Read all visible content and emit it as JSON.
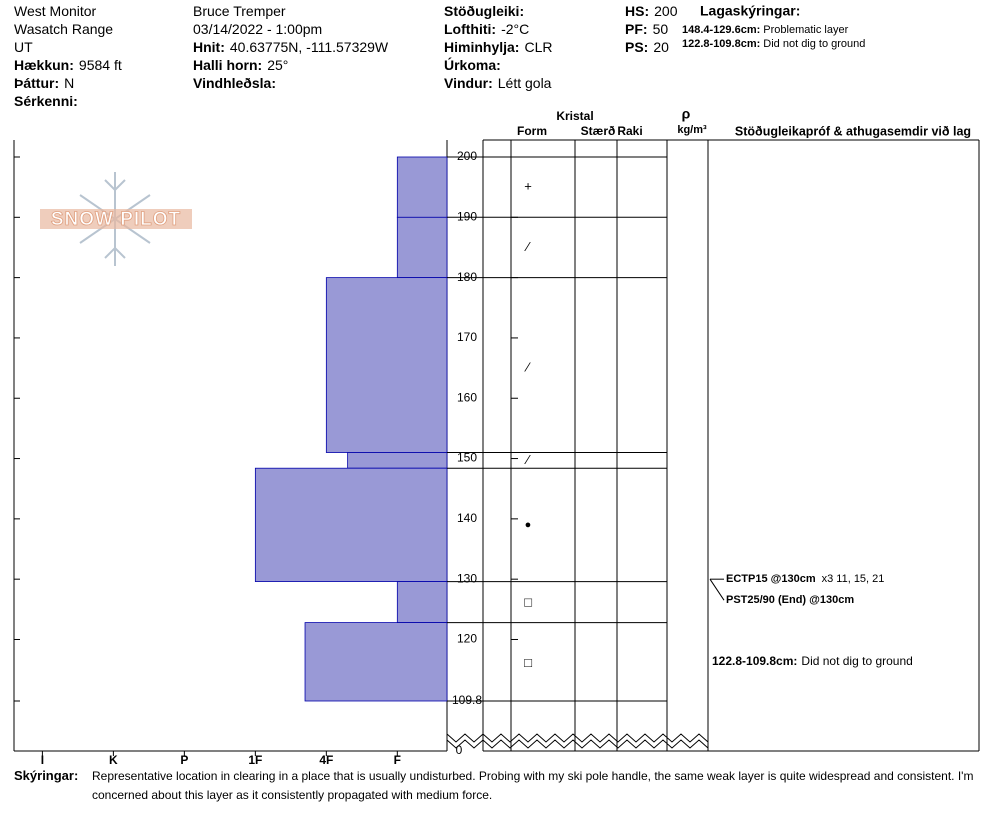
{
  "header": {
    "columns": [
      [
        {
          "value": "West Monitor"
        },
        {
          "value": "Wasatch Range"
        },
        {
          "value": "UT"
        },
        {
          "label": "Hækkun:",
          "value": "9584 ft"
        },
        {
          "label": "Þáttur:",
          "value": "N"
        },
        {
          "label": "Sérkenni:"
        }
      ],
      [
        {
          "value": "Bruce Tremper"
        },
        {
          "value": "03/14/2022 - 1:00pm"
        },
        {
          "label": "Hnit:",
          "value": "40.63775N, -111.57329W"
        },
        {
          "label": "Halli horn:",
          "value": "25°"
        },
        {
          "label": "Vindhleðsla:"
        }
      ],
      [
        {
          "label": "Stöðugleiki:"
        },
        {
          "label": "Lofthiti:",
          "value": "-2°C"
        },
        {
          "label": "Himinhylja:",
          "value": "CLR"
        },
        {
          "label": "Úrkoma:"
        },
        {
          "label": "Vindur:",
          "value": "Létt gola"
        }
      ],
      [
        {
          "label": "HS:",
          "value": "200"
        },
        {
          "label": "PF:",
          "value": "50"
        },
        {
          "label": "PS:",
          "value": "20"
        }
      ]
    ],
    "legend_title": "Lagaskýringar:",
    "legend": [
      {
        "range": "148.4-129.6cm:",
        "text": "Problematic layer"
      },
      {
        "range": "122.8-109.8cm:",
        "text": "Did not dig to ground"
      }
    ]
  },
  "logo": "SNOW PILOT",
  "chart_data": {
    "type": "snow-profile",
    "ylim": [
      109.8,
      200
    ],
    "yticks": [
      200,
      190,
      180,
      170,
      160,
      150,
      140,
      130,
      120,
      109.8
    ],
    "bottom": 0,
    "xlim": [
      0.3,
      6.4
    ],
    "xticks": [
      {
        "value": 6,
        "label": "I"
      },
      {
        "value": 5,
        "label": "K"
      },
      {
        "value": 4,
        "label": "P"
      },
      {
        "value": 3,
        "label": "1F"
      },
      {
        "value": 2,
        "label": "4F"
      },
      {
        "value": 1,
        "label": "F"
      }
    ],
    "color": "#9999d6",
    "layers": [
      {
        "top": 200,
        "bottom": 190,
        "hardness": 1,
        "grain": "+",
        "grain_at": 195
      },
      {
        "top": 190,
        "bottom": 180,
        "hardness": 1,
        "grain": "⁄",
        "grain_at": 185
      },
      {
        "top": 180,
        "bottom": 151,
        "hardness": 2,
        "grain": "⁄",
        "grain_at": 165
      },
      {
        "top": 151,
        "bottom": 148.4,
        "hardness": 1.7,
        "grain": "⁄",
        "grain_at": 149.7
      },
      {
        "top": 148.4,
        "bottom": 129.6,
        "hardness": 3,
        "grain": "●",
        "grain_at": 139
      },
      {
        "top": 129.6,
        "bottom": 122.8,
        "hardness": 1,
        "grain": "□",
        "grain_at": 126
      },
      {
        "top": 122.8,
        "bottom": 109.8,
        "hardness": 2.3,
        "grain": "□",
        "grain_at": 116
      }
    ],
    "columns": {
      "crystal": "Kristal",
      "form": "Form",
      "size": "Stærð",
      "moisture": "Raki",
      "rho": "ρ",
      "density": "kg/m³",
      "tests": "Stöðugleikapróf & athugasemdir við lag"
    },
    "tests": [
      {
        "name": "ECTP15 @130cm",
        "result": "x3 11, 15, 21",
        "depth": 130
      },
      {
        "name": "PST25/90 (End) @130cm",
        "depth": 130
      }
    ],
    "comments": [
      {
        "range": "122.8-109.8cm:",
        "text": "Did not dig to ground",
        "top": 122.8,
        "bottom": 109.8
      }
    ]
  },
  "footer": {
    "label": "Skýringar:",
    "text": "Representative location in clearing in a place that is usually undisturbed.  Probing with my ski pole handle, the same weak layer is quite widespread and consistent.  I'm concerned about this layer as it consistently propagated with medium force."
  }
}
